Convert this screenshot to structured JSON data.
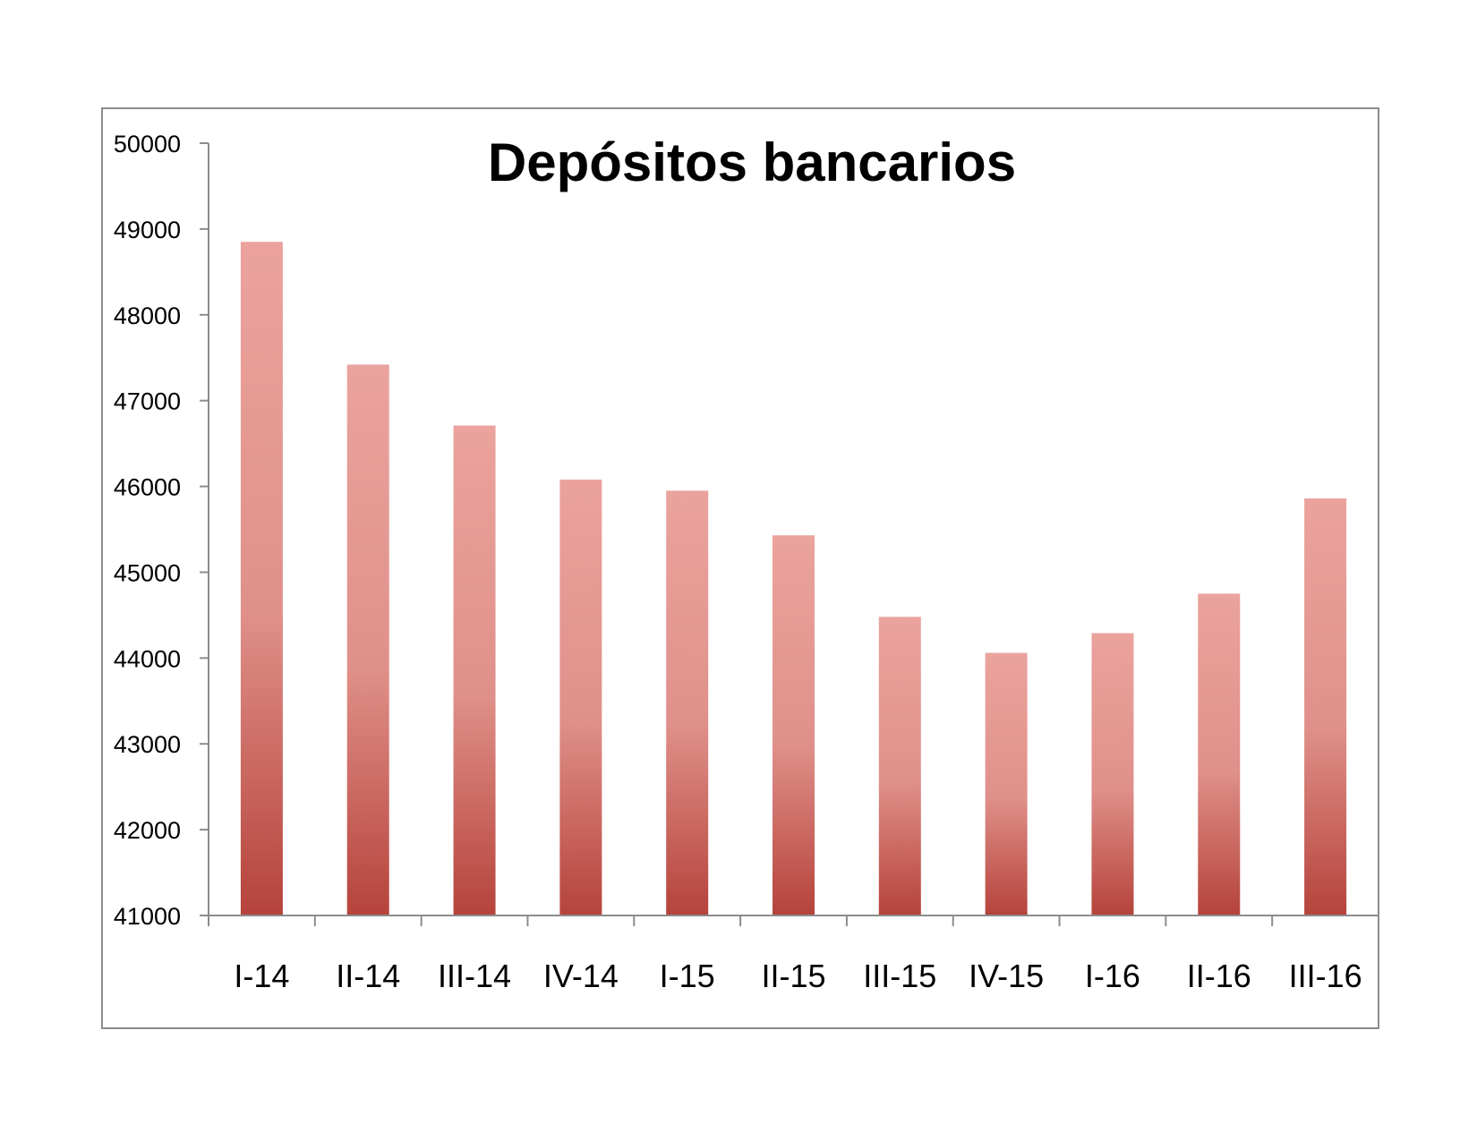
{
  "chart_data": {
    "type": "bar",
    "title": "Depósitos bancarios",
    "xlabel": "",
    "ylabel": "",
    "categories": [
      "I-14",
      "II-14",
      "III-14",
      "IV-14",
      "I-15",
      "II-15",
      "III-15",
      "IV-15",
      "I-16",
      "II-16",
      "III-16"
    ],
    "values": [
      48850,
      47420,
      46710,
      46080,
      45950,
      45430,
      44480,
      44060,
      44290,
      44750,
      45860
    ],
    "ylim": [
      41000,
      50000
    ],
    "yticks": [
      "41000",
      "42000",
      "43000",
      "44000",
      "45000",
      "46000",
      "47000",
      "48000",
      "49000",
      "50000"
    ],
    "grid": false,
    "legend": "none",
    "bar_color_top": "#eba39d",
    "bar_color_bottom": "#b5433b"
  }
}
